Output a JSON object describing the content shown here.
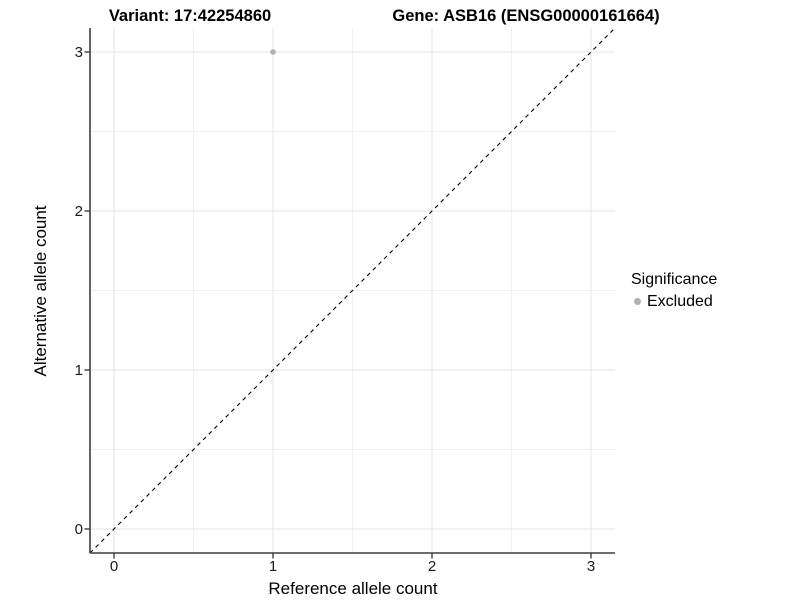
{
  "chart_data": {
    "type": "scatter",
    "titles": {
      "left": "Variant: 17:42254860",
      "right": "Gene: ASB16 (ENSG00000161664)"
    },
    "xlabel": "Reference allele count",
    "ylabel": "Alternative allele count",
    "xlim": [
      -0.15,
      3.15
    ],
    "ylim": [
      -0.15,
      3.15
    ],
    "x_ticks": [
      0,
      1,
      2,
      3
    ],
    "y_ticks": [
      0,
      1,
      2,
      3
    ],
    "grid": {
      "major_color": "#e4e4e4",
      "minor_color": "#f1f1f1",
      "minor_at_halves": true
    },
    "axis_color": "#3d3d3d",
    "identity_line": {
      "equation": "y = x",
      "style": "dashed",
      "color": "#000000"
    },
    "series": [
      {
        "name": "Excluded",
        "color": "#b0b0b0",
        "points": [
          [
            1,
            3
          ]
        ]
      }
    ],
    "legend": {
      "title": "Significance",
      "position": "right",
      "entries": [
        {
          "label": "Excluded",
          "color": "#b0b0b0"
        }
      ]
    }
  }
}
